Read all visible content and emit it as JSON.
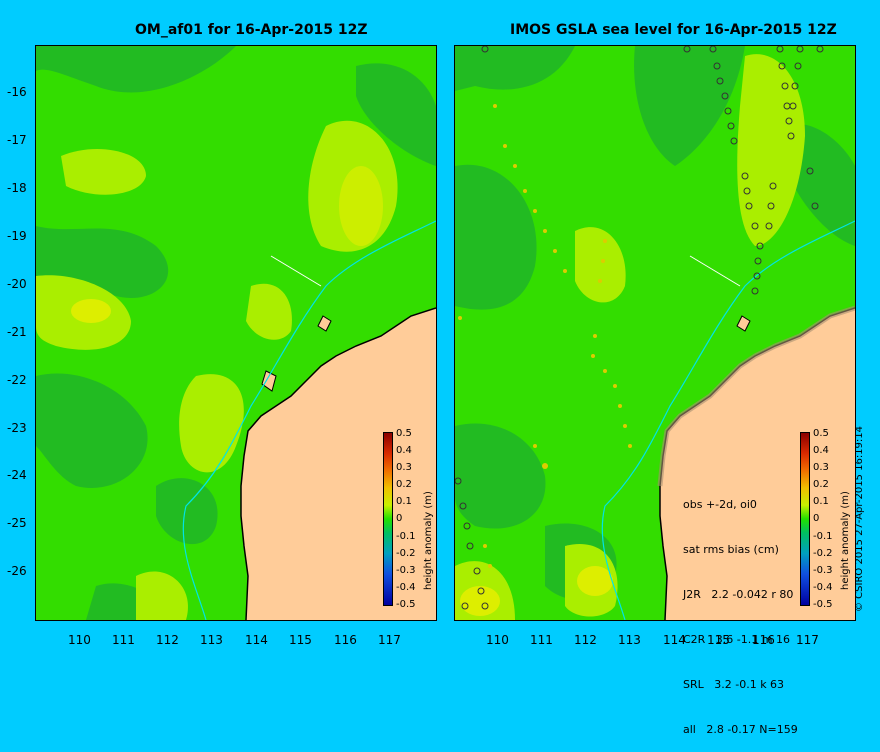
{
  "titles": {
    "left": "OM_af01 for 16-Apr-2015 12Z",
    "right": "IMOS GSLA sea level  for 16-Apr-2015 12Z"
  },
  "axes": {
    "y_ticks": [
      "-16",
      "-17",
      "-18",
      "-19",
      "-20",
      "-21",
      "-22",
      "-23",
      "-24",
      "-25",
      "-26"
    ],
    "x_ticks": [
      "110",
      "111",
      "112",
      "113",
      "114",
      "115",
      "116",
      "117"
    ]
  },
  "colorbar": {
    "label": "height anomaly (m)",
    "ticks": [
      "0.5",
      "0.4",
      "0.3",
      "0.2",
      "0.1",
      "0",
      "-0.1",
      "-0.2",
      "-0.3",
      "-0.4",
      "-0.5"
    ]
  },
  "stats_box": {
    "lines": [
      "obs +-2d, oi0",
      "sat rms bias (cm)",
      "J2R   2.2 -0.042 r 80",
      "C2R   3.6 -1.1 m 16",
      "SRL   3.2 -0.1 k 63",
      "all   2.8 -0.17 N=159"
    ]
  },
  "credit": "© CSIRO 2015   27-Apr-2015 16:19:14",
  "colors": {
    "background": "#00ccff",
    "ocean_base": "#33dd00",
    "ocean_low": "#22bb22",
    "ocean_high": "#aaee00",
    "ocean_peak": "#ddee00",
    "land": "#ffcc99",
    "coast_line": "#00e5e5"
  }
}
